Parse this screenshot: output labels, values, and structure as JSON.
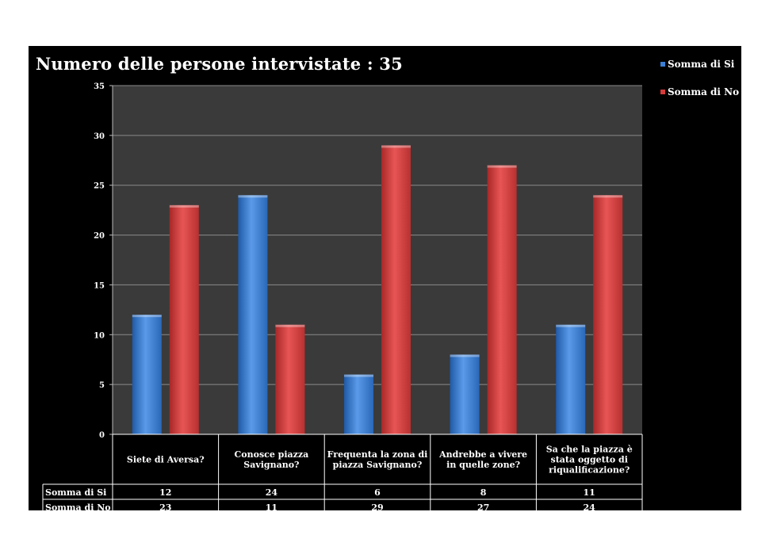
{
  "chart_data": {
    "type": "bar",
    "title": "Numero delle persone intervistate : 35",
    "categories": [
      [
        "Siete di Aversa?"
      ],
      [
        "Conosce piazza",
        "Savignano?"
      ],
      [
        "Frequenta la zona di",
        "piazza Savignano?"
      ],
      [
        "Andrebbe a vivere",
        "in quelle zone?"
      ],
      [
        "Sa che la piazza è",
        "stata oggetto di",
        "riqualificazione?"
      ]
    ],
    "series": [
      {
        "name": "Somma di Si",
        "values": [
          12,
          24,
          6,
          8,
          11
        ],
        "color": "#3b7fd4"
      },
      {
        "name": "Somma di No",
        "values": [
          23,
          11,
          29,
          27,
          24
        ],
        "color": "#d63b3b"
      }
    ],
    "ylim": [
      0,
      35
    ],
    "yticks": [
      0,
      5,
      10,
      15,
      20,
      25,
      30,
      35
    ],
    "grid": true,
    "legend_position": "top-right",
    "data_table": true
  },
  "colors": {
    "plot_background": "#3a3a3a",
    "panel_background": "#000000"
  }
}
